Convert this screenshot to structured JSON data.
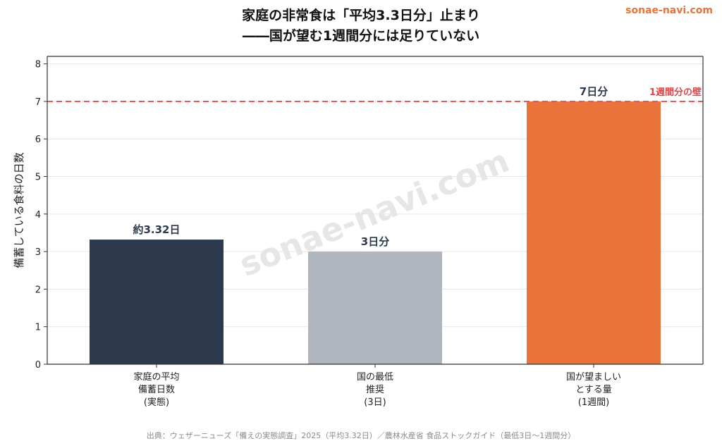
{
  "brand": "sonae-navi.com",
  "watermark": "sonae-navi.com",
  "source": "出典：ウェザーニューズ「備えの実態調査」2025（平均3.32日）／農林水産省 食品ストックガイド（最低3日〜1週間分）",
  "colors": {
    "bar_actual": "#2d3a4e",
    "bar_min": "#b0b6bd",
    "bar_ideal": "#e8743b",
    "reference": "#e05a5a",
    "label_text": "#2d3a4e"
  },
  "chart_data": {
    "type": "bar",
    "title": "家庭の非常食は「平均3.3日分」止まり",
    "subtitle": "――国が望む1週間分には足りていない",
    "xlabel": "",
    "ylabel": "備蓄している食料の日数",
    "ylim": [
      0,
      8.2
    ],
    "yticks": [
      0,
      1,
      2,
      3,
      4,
      5,
      6,
      7,
      8
    ],
    "grid": true,
    "categories": [
      [
        "家庭の平均",
        "備蓄日数",
        "(実態)"
      ],
      [
        "国の最低",
        "推奨",
        "(3日)"
      ],
      [
        "国が望ましい",
        "とする量",
        "(1週間)"
      ]
    ],
    "values": [
      3.32,
      3,
      7
    ],
    "data_labels": [
      "約3.32日",
      "3日分",
      "7日分"
    ],
    "reference_line": {
      "value": 7,
      "label": "1週間分の壁"
    }
  }
}
